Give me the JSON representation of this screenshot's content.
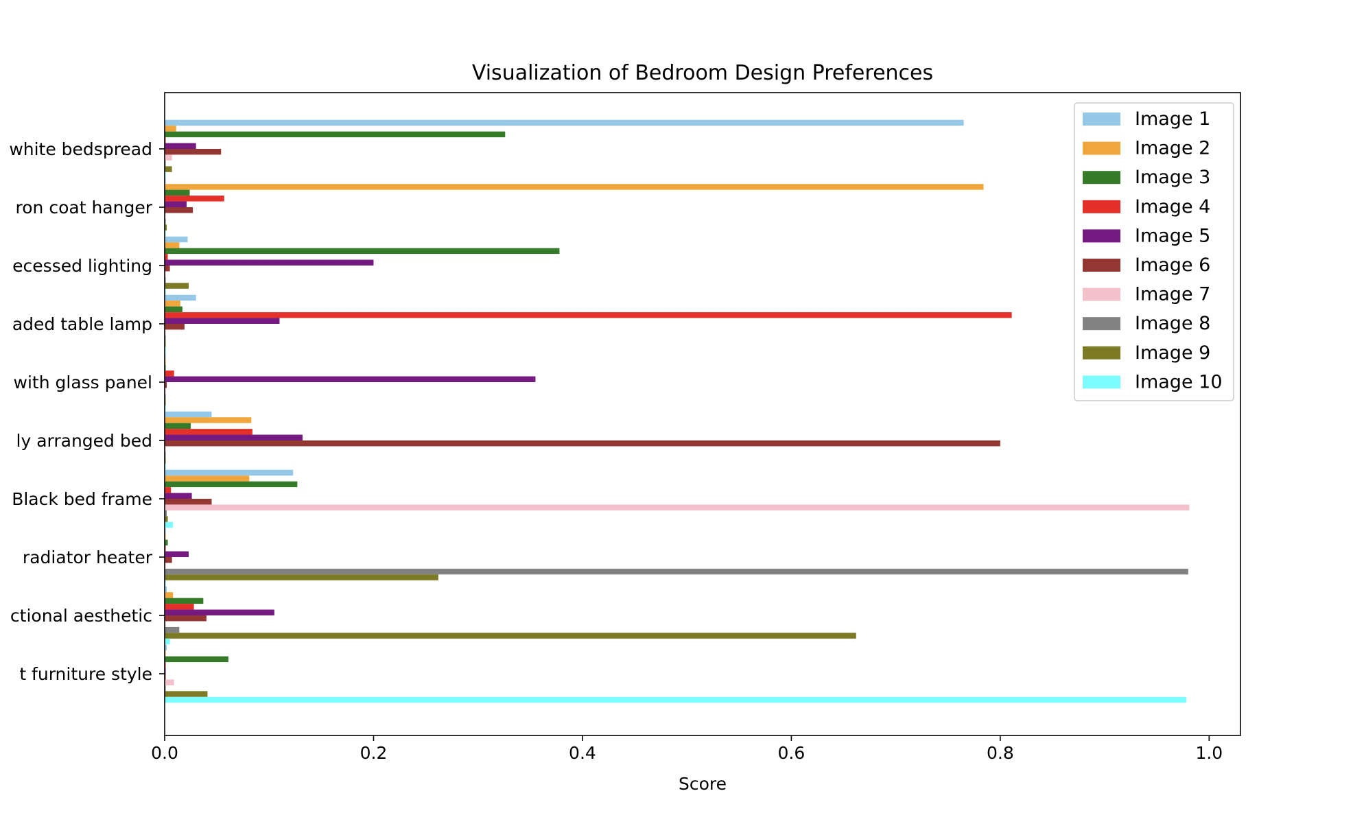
{
  "chart_data": {
    "type": "bar",
    "orientation": "horizontal",
    "title": "Visualization of Bedroom Design Preferences",
    "xlabel": "Score",
    "ylabel": "",
    "xlim": [
      0,
      1.03
    ],
    "xticks": [
      "0.0",
      "0.2",
      "0.4",
      "0.6",
      "0.8",
      "1.0"
    ],
    "legend_position": "top-right",
    "grid": false,
    "categories": [
      "white bedspread",
      "ron coat hanger",
      "ecessed lighting",
      "aded table lamp",
      "with glass panel",
      "ly arranged bed",
      "Black bed frame",
      " radiator heater",
      "ctional aesthetic",
      "t furniture style"
    ],
    "series": [
      {
        "name": "Image 1",
        "color": "#95c8e6",
        "values": [
          0.765,
          0.001,
          0.022,
          0.03,
          0.001,
          0.045,
          0.123,
          0.001,
          0.002,
          0.002
        ]
      },
      {
        "name": "Image 2",
        "color": "#f0a63c",
        "values": [
          0.011,
          0.784,
          0.014,
          0.015,
          0.001,
          0.083,
          0.081,
          0.001,
          0.008,
          0.001
        ]
      },
      {
        "name": "Image 3",
        "color": "#357b29",
        "values": [
          0.326,
          0.024,
          0.378,
          0.017,
          0.001,
          0.025,
          0.127,
          0.003,
          0.037,
          0.061
        ]
      },
      {
        "name": "Image 4",
        "color": "#e3312a",
        "values": [
          0.001,
          0.057,
          0.003,
          0.811,
          0.009,
          0.084,
          0.006,
          0.001,
          0.028,
          0.001
        ]
      },
      {
        "name": "Image 5",
        "color": "#751a80",
        "values": [
          0.03,
          0.021,
          0.2,
          0.11,
          0.355,
          0.132,
          0.026,
          0.023,
          0.105,
          0.001
        ]
      },
      {
        "name": "Image 6",
        "color": "#943632",
        "values": [
          0.054,
          0.027,
          0.005,
          0.019,
          0.002,
          0.8,
          0.045,
          0.007,
          0.04,
          0.001
        ]
      },
      {
        "name": "Image 7",
        "color": "#f3c1c9",
        "values": [
          0.007,
          0.001,
          0.001,
          0.001,
          0.001,
          0.001,
          0.981,
          0.001,
          0.001,
          0.009
        ]
      },
      {
        "name": "Image 8",
        "color": "#828282",
        "values": [
          0.001,
          0.001,
          0.001,
          0.001,
          0.001,
          0.001,
          0.002,
          0.98,
          0.014,
          0.001
        ]
      },
      {
        "name": "Image 9",
        "color": "#7d7a26",
        "values": [
          0.007,
          0.002,
          0.023,
          0.001,
          0.001,
          0.001,
          0.003,
          0.262,
          0.662,
          0.041
        ]
      },
      {
        "name": "Image 10",
        "color": "#7cfcfd",
        "values": [
          0.001,
          0.001,
          0.001,
          0.001,
          0.001,
          0.001,
          0.008,
          0.001,
          0.005,
          0.978
        ]
      }
    ]
  }
}
